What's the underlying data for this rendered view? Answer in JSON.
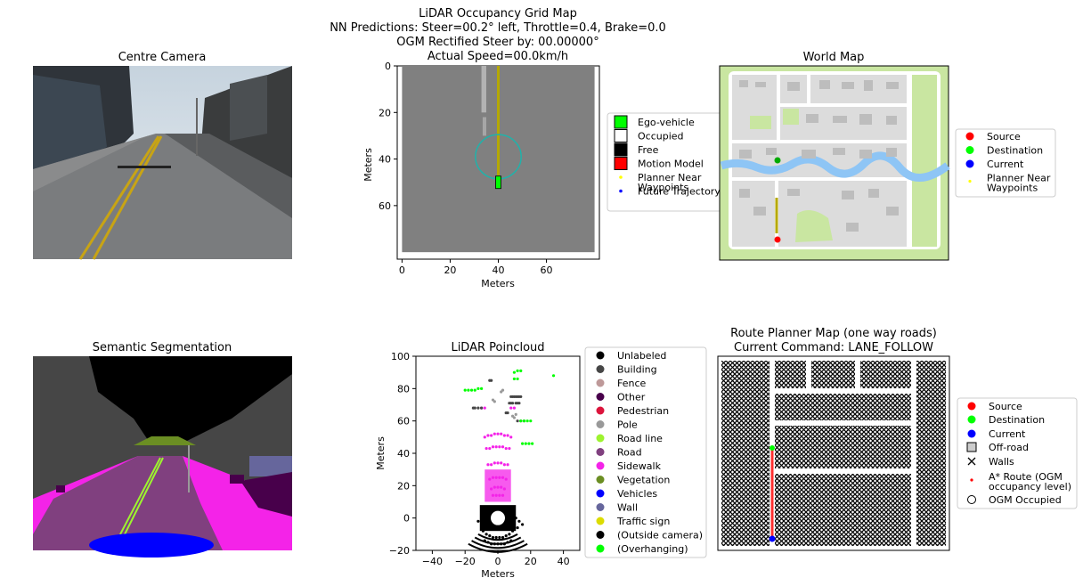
{
  "suptitle": {
    "line1": "LiDAR Occupancy Grid Map",
    "line2": "NN Predictions: Steer=00.2° left, Throttle=0.4, Brake=0.0",
    "line3": "OGM Rectified Steer by: 00.00000°",
    "line4": "Actual Speed=00.0km/h"
  },
  "colors": {
    "ego": "#00ff00",
    "occupied": "#ffffff",
    "free": "#000000",
    "motion_model": "#ff0000",
    "near_waypoints": "#ffff00",
    "future_traj": "#0000ff",
    "ogm_gray": "#808080",
    "trajectory_line": "#b5a800",
    "circle": "#20b2aa",
    "source": "#ff0000",
    "destination": "#00ff00",
    "current": "#0000ff",
    "water": "#8ec5f5",
    "park": "#c9e6a1",
    "road": "#ffffff",
    "block": "#dcdcdc"
  },
  "panels": {
    "centre_camera": {
      "title": "Centre Camera"
    },
    "ogm": {
      "xlabel": "Meters",
      "ylabel": "Meters",
      "xticks": [
        "0",
        "20",
        "40",
        "60"
      ],
      "yticks": [
        "0",
        "20",
        "40",
        "60"
      ],
      "legend": [
        {
          "label": "Ego-vehicle",
          "marker": "square",
          "color": "#00ff00"
        },
        {
          "label": "Occupied",
          "marker": "square",
          "color": "#ffffff"
        },
        {
          "label": "Free",
          "marker": "square",
          "color": "#000000"
        },
        {
          "label": "Motion Model",
          "marker": "square",
          "color": "#ff0000"
        },
        {
          "label": "Planner Near\nWaypoints",
          "marker": "dot",
          "color": "#ffff00"
        },
        {
          "label": "Future Trajectory",
          "marker": "dot",
          "color": "#0000ff"
        }
      ]
    },
    "world_map": {
      "title": "World Map",
      "legend": [
        {
          "label": "Source",
          "marker": "circle",
          "color": "#ff0000"
        },
        {
          "label": "Destination",
          "marker": "circle",
          "color": "#00ff00"
        },
        {
          "label": "Current",
          "marker": "circle",
          "color": "#0000ff"
        },
        {
          "label": "Planner Near\nWaypoints",
          "marker": "dot",
          "color": "#ffff00"
        }
      ]
    },
    "semantic": {
      "title": "Semantic Segmentation"
    },
    "lidar": {
      "title": "LiDAR Poincloud",
      "xlabel": "Meters",
      "ylabel": "Meters",
      "xticks": [
        "−40",
        "−20",
        "0",
        "20",
        "40"
      ],
      "yticks": [
        "−20",
        "0",
        "20",
        "40",
        "60",
        "80",
        "100"
      ],
      "legend": [
        {
          "label": "Unlabeled",
          "color": "#000000"
        },
        {
          "label": "Building",
          "color": "#464646"
        },
        {
          "label": "Fence",
          "color": "#be9999"
        },
        {
          "label": "Other",
          "color": "#48004b"
        },
        {
          "label": "Pedestrian",
          "color": "#dc143c"
        },
        {
          "label": "Pole",
          "color": "#999999"
        },
        {
          "label": "Road line",
          "color": "#9df32f"
        },
        {
          "label": "Road",
          "color": "#80407f"
        },
        {
          "label": "Sidewalk",
          "color": "#f423e8"
        },
        {
          "label": "Vegetation",
          "color": "#6b8e23"
        },
        {
          "label": "Vehicles",
          "color": "#0000ff"
        },
        {
          "label": "Wall",
          "color": "#66669c"
        },
        {
          "label": "Traffic sign",
          "color": "#dcdc00"
        },
        {
          "label": "(Outside camera)",
          "color": "#000000"
        },
        {
          "label": "(Overhanging)",
          "color": "#00ff00"
        }
      ]
    },
    "route_planner": {
      "title_line1": "Route Planner Map (one way roads)",
      "title_line2": "Current Command: LANE_FOLLOW",
      "legend": [
        {
          "label": "Source",
          "marker": "circle",
          "color": "#ff0000"
        },
        {
          "label": "Destination",
          "marker": "circle",
          "color": "#00ff00"
        },
        {
          "label": "Current",
          "marker": "circle",
          "color": "#0000ff"
        },
        {
          "label": "Off-road",
          "marker": "square",
          "color": "#cccccc"
        },
        {
          "label": "Walls",
          "marker": "x",
          "color": "#000000"
        },
        {
          "label": "A* Route (OGM\noccupancy level)",
          "marker": "dot",
          "color": "#ff0000"
        },
        {
          "label": "OGM Occupied",
          "marker": "hollow",
          "color": "#000000"
        }
      ]
    }
  },
  "chart_data": [
    {
      "type": "heatmap",
      "panel": "centre_camera",
      "title": "Centre Camera",
      "content": "camera image"
    },
    {
      "type": "heatmap",
      "panel": "ogm",
      "title": "Actual Speed=00.0km/h",
      "xlabel": "Meters",
      "ylabel": "Meters",
      "xlim": [
        -2,
        82
      ],
      "ylim": [
        83,
        0
      ],
      "grid": false,
      "occupancy_extent": [
        0,
        80,
        0,
        80
      ],
      "ego_vehicle": {
        "x": 40,
        "y": 50
      },
      "circle": {
        "center": [
          40,
          39
        ],
        "radius": 9.5
      },
      "trajectory": {
        "x": [
          40,
          40
        ],
        "y": [
          0,
          47
        ]
      },
      "legend_position": "right"
    },
    {
      "type": "heatmap",
      "panel": "world_map",
      "title": "World Map",
      "source": "bottom-left road",
      "destination": "left-middle road",
      "legend_position": "right"
    },
    {
      "type": "heatmap",
      "panel": "semantic",
      "title": "Semantic Segmentation",
      "content": "segmentation image"
    },
    {
      "type": "scatter",
      "panel": "lidar",
      "title": "LiDAR Poincloud",
      "xlabel": "Meters",
      "ylabel": "Meters",
      "xlim": [
        -50,
        50
      ],
      "ylim": [
        -20,
        100
      ],
      "grid": false,
      "legend_position": "right",
      "series": [
        {
          "name": "(Outside camera)",
          "color": "#000000",
          "x": [
            -8,
            -6,
            -4,
            -2,
            0,
            2,
            4,
            6,
            8,
            -7,
            -5,
            -3,
            -1,
            1,
            3,
            5,
            7,
            -9,
            9,
            -10,
            10,
            -6,
            6,
            -8,
            8,
            11,
            13,
            15,
            -12,
            12
          ],
          "y": [
            -14,
            -15,
            -16,
            -16,
            -16,
            -16,
            -16,
            -15,
            -14,
            -10,
            -11,
            -12,
            -12,
            -12,
            -12,
            -11,
            -10,
            -8,
            -8,
            -4,
            -4,
            4,
            4,
            2,
            2,
            0,
            -2,
            -4,
            -2,
            -6
          ]
        },
        {
          "name": "Sidewalk",
          "color": "#f423e8",
          "x": [
            -8,
            -6,
            -4,
            -2,
            0,
            2,
            4,
            6,
            8,
            -7,
            -5,
            -3,
            -1,
            1,
            3,
            5,
            7,
            -6,
            -4,
            -2,
            0,
            2,
            4,
            6,
            -5,
            -3,
            -1,
            1,
            3,
            5,
            -4,
            -2,
            0,
            2,
            4,
            -3,
            -1,
            1,
            3,
            -10,
            -8,
            8,
            10
          ],
          "y": [
            50,
            51,
            51,
            52,
            52,
            52,
            51,
            51,
            50,
            43,
            43,
            44,
            44,
            44,
            44,
            43,
            43,
            33,
            33,
            34,
            34,
            34,
            33,
            33,
            24,
            25,
            25,
            25,
            25,
            24,
            18,
            19,
            19,
            19,
            18,
            14,
            14,
            14,
            14,
            68,
            68,
            68,
            68
          ]
        },
        {
          "name": "Building",
          "color": "#464646",
          "x": [
            -15,
            -14,
            -12,
            -10,
            8,
            9,
            10,
            11,
            12,
            13,
            14,
            7,
            8,
            9,
            11,
            12,
            13,
            -5,
            -4,
            5,
            6,
            12,
            14,
            16
          ],
          "y": [
            68,
            68,
            68,
            68,
            75,
            75,
            75,
            75,
            75,
            75,
            75,
            71,
            71,
            71,
            71,
            71,
            71,
            85,
            85,
            65,
            65,
            60,
            60,
            60
          ]
        },
        {
          "name": "(Overhanging)",
          "color": "#00ff00",
          "x": [
            -20,
            -18,
            -16,
            -14,
            10,
            12,
            14,
            34,
            14,
            16,
            18,
            20,
            -12,
            -10,
            15,
            17,
            19,
            21,
            10,
            12
          ],
          "y": [
            79,
            79,
            79,
            79,
            90,
            91,
            91,
            88,
            60,
            60,
            60,
            60,
            80,
            80,
            46,
            46,
            46,
            46,
            86,
            86
          ]
        },
        {
          "name": "Pole",
          "color": "#999999",
          "x": [
            -3,
            -2,
            2,
            3,
            9,
            10,
            11
          ],
          "y": [
            73,
            72,
            78,
            79,
            63,
            62,
            64
          ]
        }
      ]
    },
    {
      "type": "heatmap",
      "panel": "route_planner",
      "title": "Route Planner Map (one way roads)",
      "subtitle": "Current Command: LANE_FOLLOW",
      "legend_position": "right",
      "route": "vertical segment along left road"
    }
  ]
}
